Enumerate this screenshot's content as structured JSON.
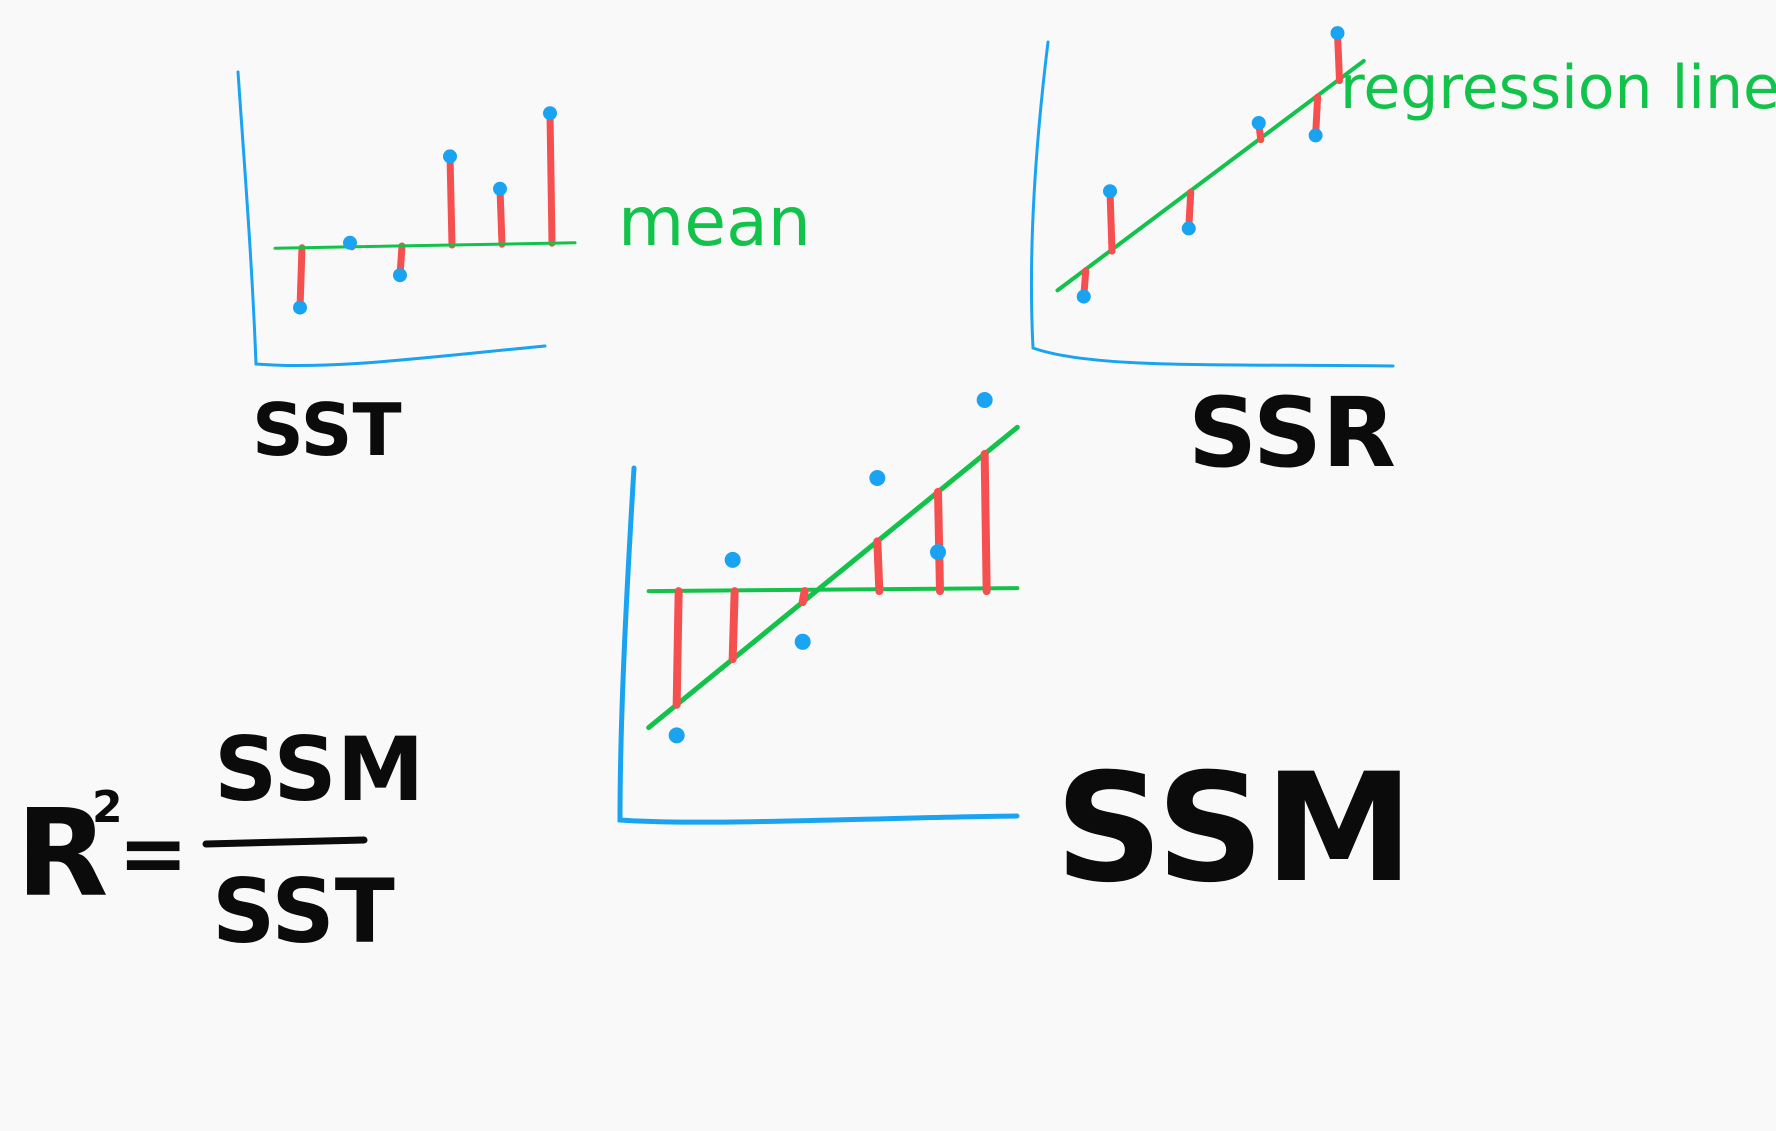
{
  "colors": {
    "background": "#f9f9f9",
    "axis": "#1aa3f0",
    "data_point": "#1aa3f0",
    "line": "#12c24a",
    "residual": "#f5504f",
    "text": "#0b0b0b"
  },
  "panels": {
    "sst": {
      "label": "SST",
      "line_label": "mean",
      "points": [
        [
          1,
          1.2
        ],
        [
          2,
          3.6
        ],
        [
          3,
          2.4
        ],
        [
          4,
          6.8
        ],
        [
          5,
          5.6
        ],
        [
          6,
          8.4
        ]
      ],
      "line": [
        [
          0.5,
          3.4
        ],
        [
          6.5,
          3.6
        ]
      ]
    },
    "ssr": {
      "label": "SSR",
      "line_label": "regression line",
      "points": [
        [
          1,
          1.4
        ],
        [
          1.6,
          4.8
        ],
        [
          3.4,
          3.6
        ],
        [
          5,
          7.0
        ],
        [
          6.3,
          6.6
        ],
        [
          6.8,
          9.9
        ]
      ],
      "line": [
        [
          0.4,
          1.6
        ],
        [
          7.4,
          9.0
        ]
      ]
    },
    "ssm": {
      "label": "SSM",
      "points": [
        [
          1,
          1.4
        ],
        [
          2.2,
          5.9
        ],
        [
          3.7,
          3.8
        ],
        [
          5.3,
          8.0
        ],
        [
          6.6,
          6.1
        ],
        [
          7.6,
          10.0
        ]
      ],
      "regression": [
        [
          0.4,
          1.6
        ],
        [
          8.3,
          9.3
        ]
      ],
      "mean": [
        0.4,
        5.1,
        8.3
      ]
    }
  },
  "formula": {
    "lhs": "R",
    "power": "2",
    "eq": "=",
    "numerator": "SSM",
    "denominator": "SST"
  }
}
